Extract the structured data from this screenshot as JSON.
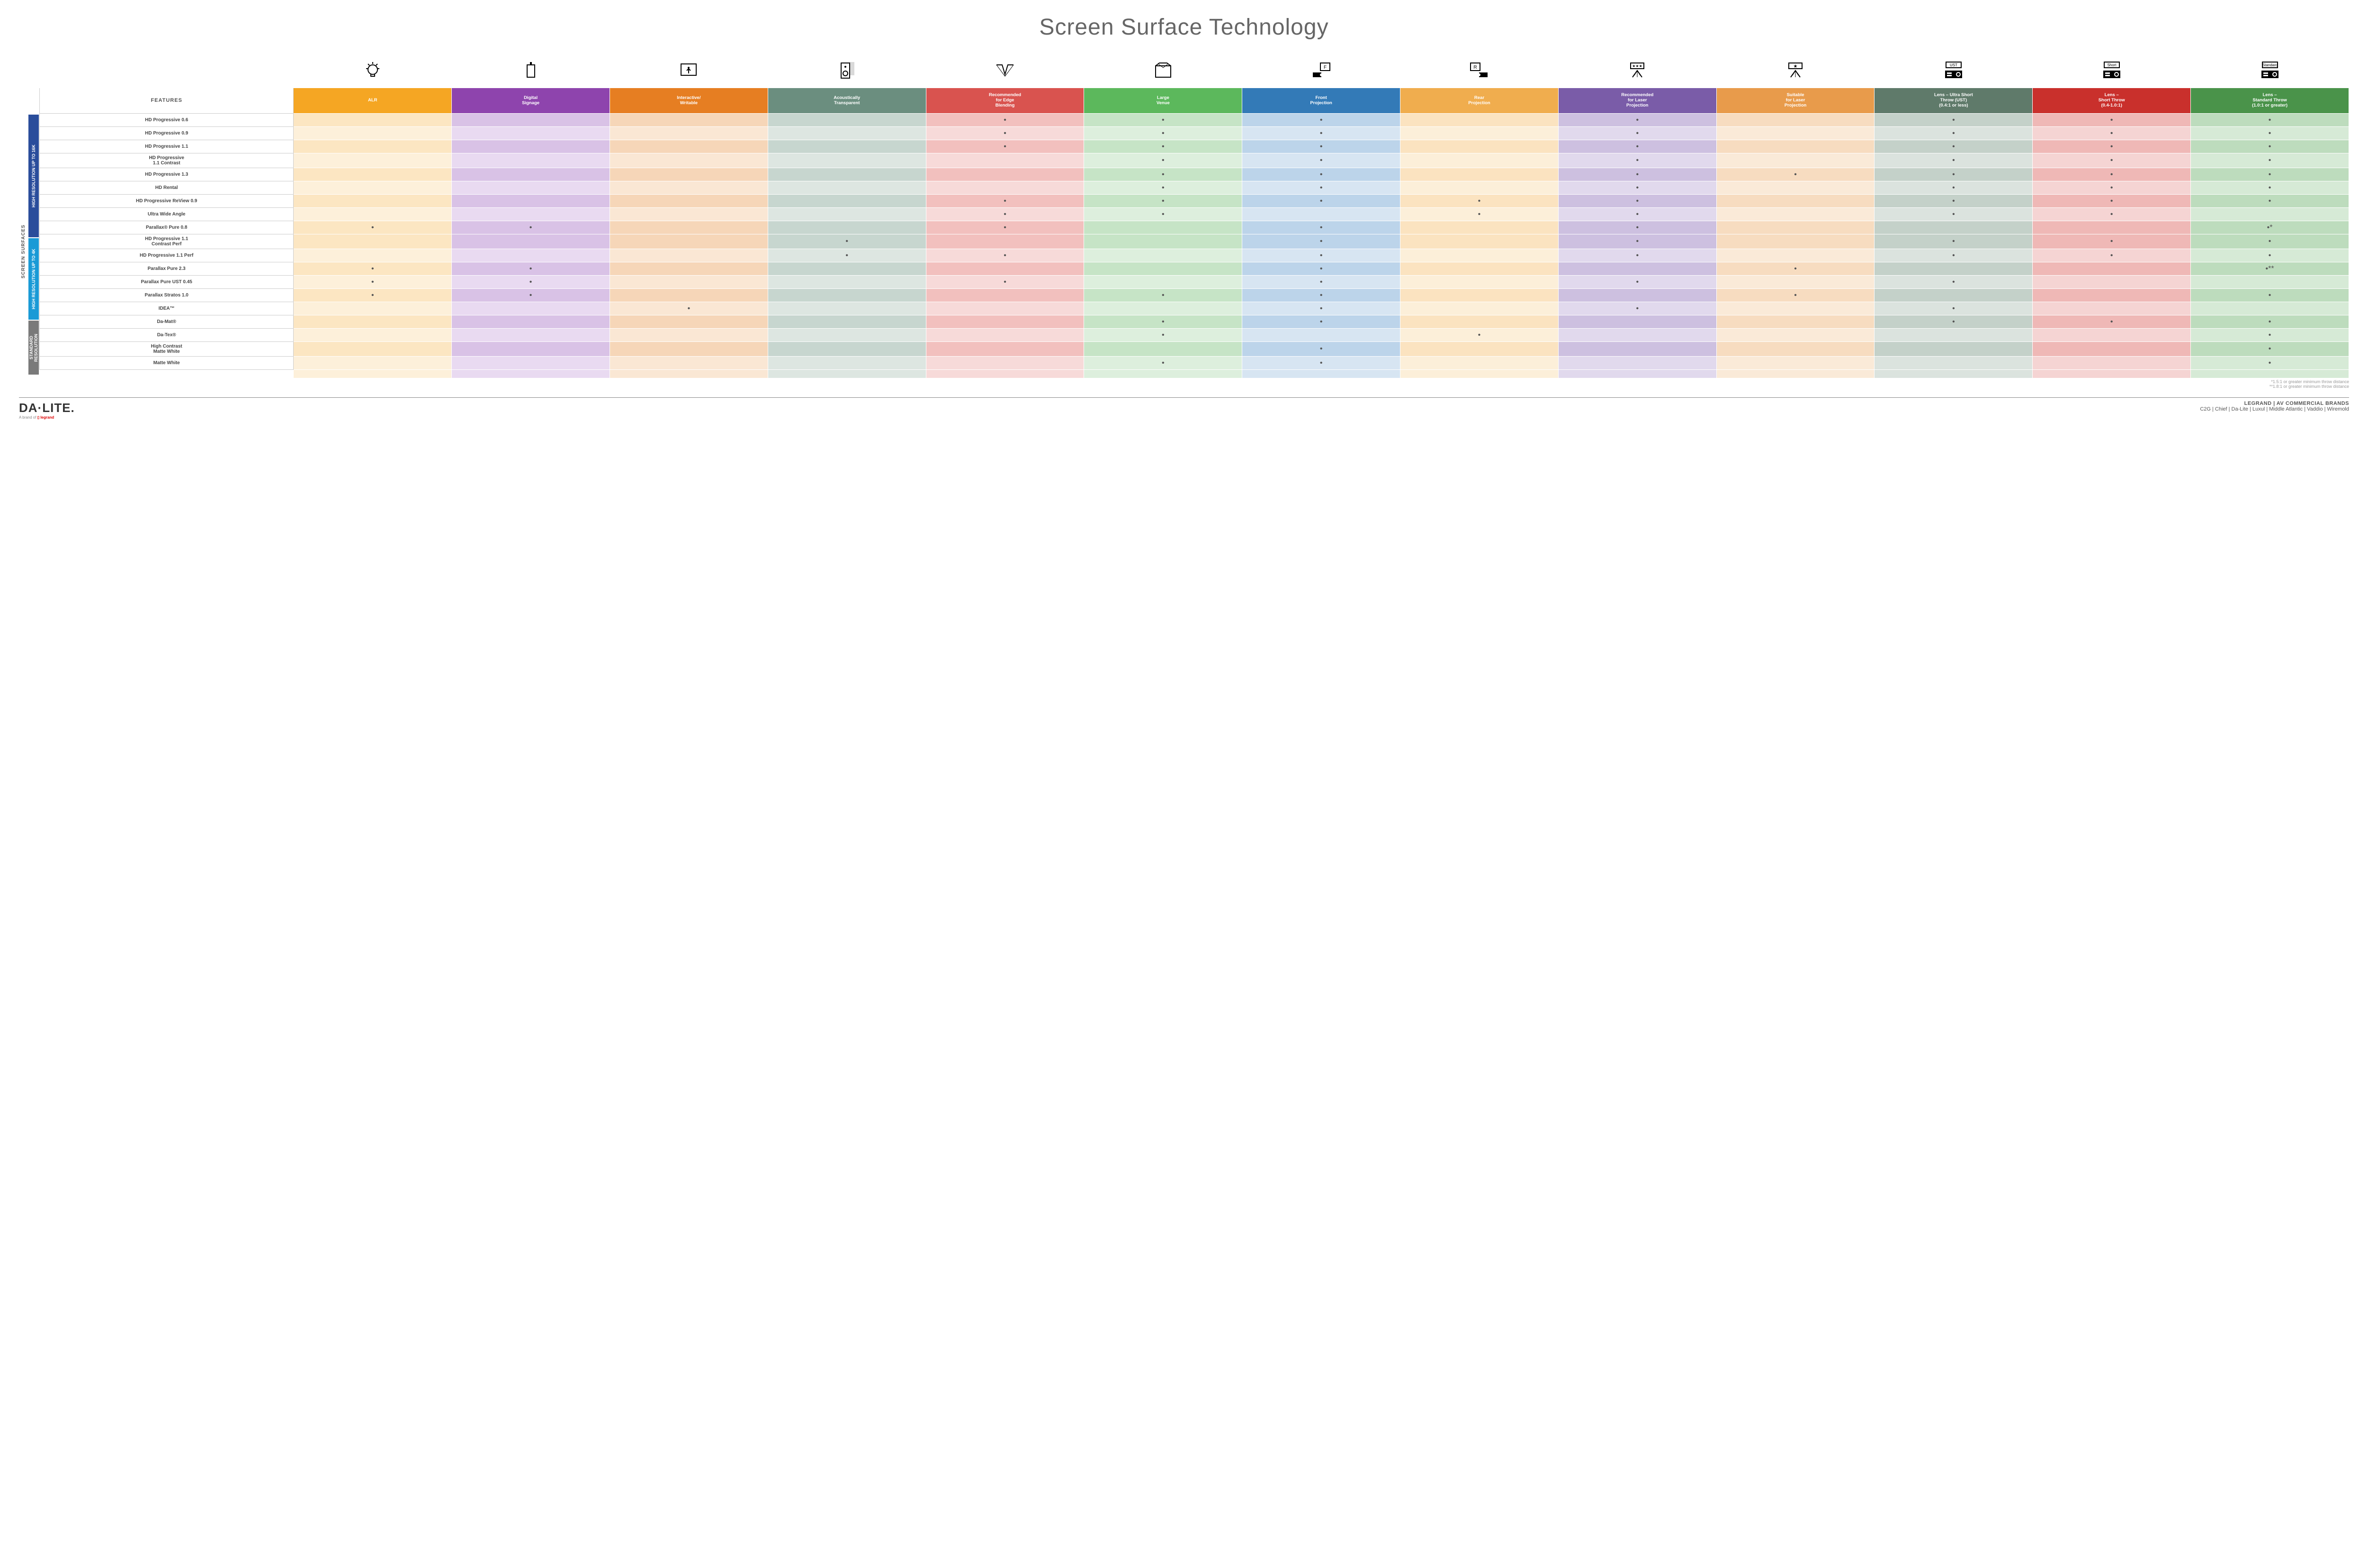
{
  "title": "Screen Surface Technology",
  "features_label": "FEATURES",
  "surfaces_label": "SCREEN SURFACES",
  "colors": {
    "dot": "#555555",
    "group_bg": {
      "g16k": "#2a4d9b",
      "g4k": "#1a9ad6",
      "gstd": "#7a7a7a"
    }
  },
  "columns": [
    {
      "key": "alr",
      "label": "ALR",
      "color": "#f5a623",
      "light": "#fce6c2",
      "lighter": "#fdf0da",
      "icon": "bulb"
    },
    {
      "key": "signage",
      "label": "Digital\nSignage",
      "color": "#8e44ad",
      "light": "#d9c2e6",
      "lighter": "#e9daf1",
      "icon": "signage"
    },
    {
      "key": "interactive",
      "label": "Interactive/\nWritable",
      "color": "#e67e22",
      "light": "#f6d6b8",
      "lighter": "#fae7d4",
      "icon": "touch"
    },
    {
      "key": "acoustic",
      "label": "Acoustically\nTransparent",
      "color": "#6b8e7f",
      "light": "#c7d6cf",
      "lighter": "#dde6e1",
      "icon": "speaker"
    },
    {
      "key": "edge",
      "label": "Recommended\nfor Edge\nBlending",
      "color": "#d9534f",
      "light": "#f2c0be",
      "lighter": "#f7dad9",
      "icon": "edge"
    },
    {
      "key": "large",
      "label": "Large\nVenue",
      "color": "#5cb85c",
      "light": "#c6e4c6",
      "lighter": "#ddefdd",
      "icon": "venue"
    },
    {
      "key": "front",
      "label": "Front\nProjection",
      "color": "#337ab7",
      "light": "#bcd4ea",
      "lighter": "#d7e5f2",
      "icon": "front"
    },
    {
      "key": "rear",
      "label": "Rear\nProjection",
      "color": "#f0ad4e",
      "light": "#fbe3c0",
      "lighter": "#fcefd9",
      "icon": "rear"
    },
    {
      "key": "reclaser",
      "label": "Recommended\nfor Laser\nProjection",
      "color": "#7a5ca8",
      "light": "#cdc0e0",
      "lighter": "#e1d9ed",
      "icon": "laser3"
    },
    {
      "key": "suitlaser",
      "label": "Suitable\nfor Laser\nProjection",
      "color": "#e89b4b",
      "light": "#f7dcc0",
      "lighter": "#faead8",
      "icon": "laser1"
    },
    {
      "key": "ust",
      "label": "Lens – Ultra Short\nThrow (UST)\n(0.4:1 or less)",
      "color": "#5f7a6a",
      "light": "#c4d1c9",
      "lighter": "#dbe3de",
      "icon": "proj",
      "icon_label": "UST"
    },
    {
      "key": "short",
      "label": "Lens –\nShort Throw\n(0.4-1.0:1)",
      "color": "#c9302c",
      "light": "#efb8b6",
      "lighter": "#f5d4d3",
      "icon": "proj",
      "icon_label": "Short"
    },
    {
      "key": "std",
      "label": "Lens –\nStandard Throw\n(1.0:1 or greater)",
      "color": "#4a934a",
      "light": "#bddcbd",
      "lighter": "#d6ead6",
      "icon": "proj",
      "icon_label": "Standard"
    }
  ],
  "groups": [
    {
      "key": "g16k",
      "label": "HIGH RESOLUTION UP TO 16K",
      "rows": [
        {
          "label": "HD Progressive 0.6",
          "dots": {
            "edge": "•",
            "large": "•",
            "front": "•",
            "reclaser": "•",
            "ust": "•",
            "short": "•",
            "std": "•"
          }
        },
        {
          "label": "HD Progressive 0.9",
          "dots": {
            "edge": "•",
            "large": "•",
            "front": "•",
            "reclaser": "•",
            "ust": "•",
            "short": "•",
            "std": "•"
          }
        },
        {
          "label": "HD Progressive 1.1",
          "dots": {
            "edge": "•",
            "large": "•",
            "front": "•",
            "reclaser": "•",
            "ust": "•",
            "short": "•",
            "std": "•"
          }
        },
        {
          "label": "HD Progressive\n1.1 Contrast",
          "dots": {
            "large": "•",
            "front": "•",
            "reclaser": "•",
            "ust": "•",
            "short": "•",
            "std": "•"
          }
        },
        {
          "label": "HD Progressive 1.3",
          "dots": {
            "large": "•",
            "front": "•",
            "reclaser": "•",
            "suitlaser": "•",
            "ust": "•",
            "short": "•",
            "std": "•"
          }
        },
        {
          "label": "HD Rental",
          "dots": {
            "large": "•",
            "front": "•",
            "reclaser": "•",
            "ust": "•",
            "short": "•",
            "std": "•"
          }
        },
        {
          "label": "HD Progressive ReView 0.9",
          "dots": {
            "edge": "•",
            "large": "•",
            "front": "•",
            "rear": "•",
            "reclaser": "•",
            "ust": "•",
            "short": "•",
            "std": "•"
          }
        },
        {
          "label": "Ultra Wide Angle",
          "dots": {
            "edge": "•",
            "large": "•",
            "rear": "•",
            "reclaser": "•",
            "ust": "•",
            "short": "•"
          }
        },
        {
          "label": "Parallax® Pure 0.8",
          "dots": {
            "alr": "•",
            "signage": "•",
            "edge": "•",
            "front": "•",
            "reclaser": "•",
            "std": "•*"
          }
        }
      ]
    },
    {
      "key": "g4k",
      "label": "HIGH RESOLUTION UP TO 4K",
      "rows": [
        {
          "label": "HD Progressive 1.1\nContrast Perf",
          "dots": {
            "acoustic": "•",
            "front": "•",
            "reclaser": "•",
            "ust": "•",
            "short": "•",
            "std": "•"
          }
        },
        {
          "label": "HD Progressive 1.1 Perf",
          "dots": {
            "acoustic": "•",
            "edge": "•",
            "front": "•",
            "reclaser": "•",
            "ust": "•",
            "short": "•",
            "std": "•"
          }
        },
        {
          "label": "Parallax Pure 2.3",
          "dots": {
            "alr": "•",
            "signage": "•",
            "front": "•",
            "suitlaser": "•",
            "std": "•**"
          }
        },
        {
          "label": "Parallax Pure UST 0.45",
          "dots": {
            "alr": "•",
            "signage": "•",
            "edge": "•",
            "front": "•",
            "reclaser": "•",
            "ust": "•"
          }
        },
        {
          "label": "Parallax Stratos 1.0",
          "dots": {
            "alr": "•",
            "signage": "•",
            "large": "•",
            "front": "•",
            "suitlaser": "•",
            "std": "•"
          }
        },
        {
          "label": "IDEA™",
          "dots": {
            "interactive": "•",
            "front": "•",
            "reclaser": "•",
            "ust": "•"
          }
        }
      ]
    },
    {
      "key": "gstd",
      "label": "STANDARD\nRESOLUTION",
      "rows": [
        {
          "label": "Da-Mat®",
          "dots": {
            "large": "•",
            "front": "•",
            "ust": "•",
            "short": "•",
            "std": "•"
          }
        },
        {
          "label": "Da-Tex®",
          "dots": {
            "large": "•",
            "rear": "•",
            "std": "•"
          }
        },
        {
          "label": "High Contrast\nMatte White",
          "dots": {
            "front": "•",
            "std": "•"
          }
        },
        {
          "label": "Matte White",
          "dots": {
            "large": "•",
            "front": "•",
            "std": "•"
          }
        }
      ]
    }
  ],
  "footnotes": [
    "*1.5:1 or greater minimum throw distance",
    "**1.8:1 or greater minimum throw distance"
  ],
  "footer": {
    "logo": "DA·LITE.",
    "logo_sub_prefix": "A brand of ",
    "logo_sub_brand": "legrand",
    "brands_title": "LEGRAND | AV COMMERCIAL BRANDS",
    "brands_list": "C2G  |  Chief  |  Da-Lite  |  Luxul  |  Middle Atlantic  |  Vaddio  |  Wiremold"
  }
}
